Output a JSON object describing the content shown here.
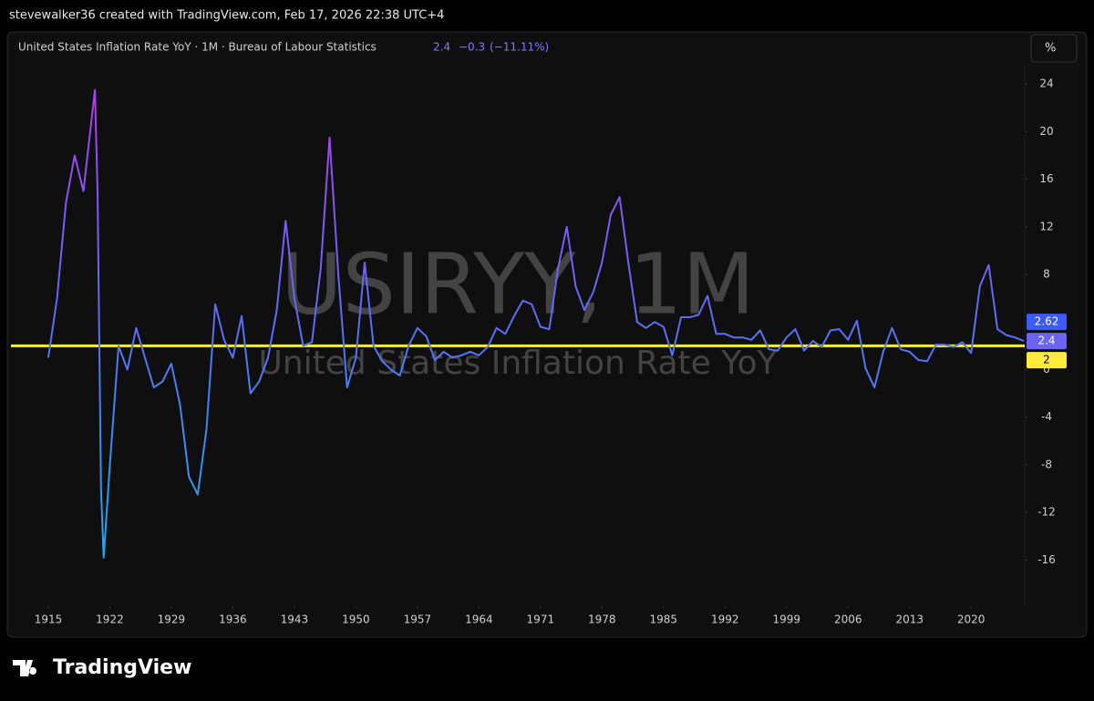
{
  "header": {
    "attribution": "stevewalker36 created with TradingView.com, Feb 17, 2026 22:38 UTC+4",
    "legend": "United States Inflation Rate YoY · 1M · Bureau of Labour Statistics",
    "last": "2.4",
    "change": "−0.3",
    "change_percent": "(−11.11%)",
    "scale_button": "%"
  },
  "chart_data": {
    "type": "line",
    "watermark": "USIRYY, 1M",
    "watermark_subtitle": "United States Inflation Rate YoY",
    "x": [
      1915,
      1916,
      1917,
      1918,
      1919,
      1920.3,
      1920.6,
      1921,
      1921.3,
      1922,
      1923,
      1924,
      1925,
      1926,
      1927,
      1928,
      1929,
      1930,
      1931,
      1932,
      1933,
      1934,
      1935,
      1936,
      1937,
      1938,
      1939,
      1940,
      1941,
      1942,
      1943,
      1944,
      1945,
      1946,
      1947,
      1948,
      1949,
      1950,
      1951,
      1952,
      1953,
      1954,
      1955,
      1956,
      1957,
      1958,
      1959,
      1960,
      1961,
      1962,
      1963,
      1964,
      1965,
      1966,
      1967,
      1968,
      1969,
      1970,
      1971,
      1972,
      1973,
      1974,
      1975,
      1976,
      1977,
      1978,
      1979,
      1980,
      1981,
      1982,
      1983,
      1984,
      1985,
      1986,
      1987,
      1988,
      1989,
      1990,
      1991,
      1992,
      1993,
      1994,
      1995,
      1996,
      1997,
      1998,
      1999,
      2000,
      2001,
      2002,
      2003,
      2004,
      2005,
      2006,
      2007,
      2008,
      2009,
      2010,
      2011,
      2012,
      2013,
      2014,
      2015,
      2016,
      2017,
      2018,
      2019,
      2020,
      2021,
      2022,
      2023,
      2024,
      2025,
      2026
    ],
    "series": [
      {
        "name": "United States Inflation Rate YoY",
        "color": "#6a63f5",
        "values": [
          1,
          6,
          14,
          18,
          15,
          23.5,
          15,
          -10,
          -15.8,
          -8,
          2,
          0,
          3.5,
          1,
          -1.5,
          -1,
          0.5,
          -3,
          -9,
          -10.5,
          -5,
          5.5,
          2.5,
          1,
          4.5,
          -2,
          -1,
          1,
          5,
          12.5,
          6,
          2,
          2.3,
          8.5,
          19.5,
          8,
          -1.5,
          1,
          9,
          2,
          0.7,
          0,
          -0.5,
          2,
          3.5,
          2.8,
          0.8,
          1.5,
          1,
          1.2,
          1.5,
          1.2,
          1.9,
          3.5,
          3,
          4.5,
          5.8,
          5.5,
          3.6,
          3.4,
          8.5,
          12,
          7,
          5,
          6.5,
          9,
          13,
          14.5,
          9,
          4,
          3.5,
          4,
          3.6,
          1.2,
          4.4,
          4.4,
          4.6,
          6.2,
          3,
          3,
          2.7,
          2.7,
          2.5,
          3.3,
          1.7,
          1.6,
          2.7,
          3.4,
          1.6,
          2.4,
          1.9,
          3.3,
          3.4,
          2.5,
          4.1,
          0.1,
          -1.5,
          1.5,
          3.5,
          1.7,
          1.5,
          0.8,
          0.7,
          2.1,
          2.1,
          1.9,
          2.3,
          1.4,
          7,
          8.8,
          3.4,
          2.9,
          2.7,
          2.4
        ]
      }
    ],
    "gradient_colors": [
      "#b23cf0",
      "#5b6ef5",
      "#1fa8ef"
    ],
    "reference_line": {
      "value": 2,
      "label": "2",
      "color": "#ffeb3b"
    },
    "price_label": {
      "value": 2.62,
      "color": "#3d5afe"
    },
    "xlim": [
      1910.75,
      2026.1
    ],
    "ylim": [
      -19.5,
      25.7
    ],
    "xticks": [
      1915,
      1922,
      1929,
      1936,
      1943,
      1950,
      1957,
      1964,
      1971,
      1978,
      1985,
      1992,
      1999,
      2006,
      2013,
      2020
    ],
    "yticks": [
      24,
      20,
      16,
      12,
      8,
      0,
      -4,
      -8,
      -12,
      -16
    ],
    "grid": false
  },
  "footer": {
    "brand": "TradingView"
  }
}
